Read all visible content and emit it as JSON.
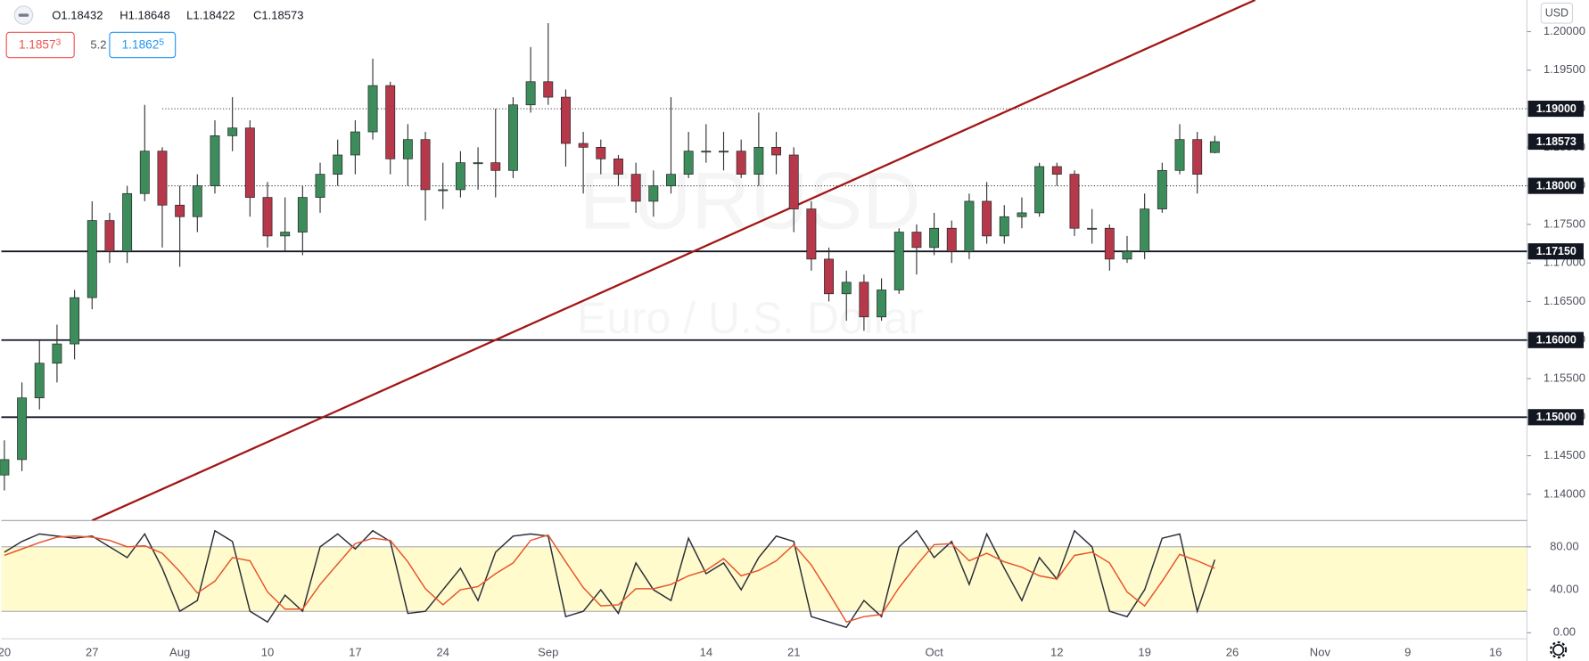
{
  "chart_data": {
    "type": "candlestick",
    "watermark": {
      "symbol": "EURUSD",
      "description": "Euro / U.S. Dollar"
    },
    "legend": {
      "open": "O1.18432",
      "high": "H1.18648",
      "low": "L1.18422",
      "close": "C1.18573"
    },
    "bid": "1.18573",
    "spread": "5.2",
    "ask": "1.18625",
    "currency": "USD",
    "up_color": "#3d8c5c",
    "down_color": "#b5394a",
    "wick_color": "#333333",
    "open": [
      1.1425,
      1.1445,
      1.1525,
      1.157,
      1.1595,
      1.1655,
      1.1755,
      1.1715,
      1.179,
      1.1845,
      1.1775,
      1.176,
      1.18,
      1.1865,
      1.1875,
      1.1785,
      1.1735,
      1.174,
      1.1785,
      1.1815,
      1.184,
      1.187,
      1.193,
      1.1835,
      1.186,
      1.1795,
      1.1795,
      1.183,
      1.183,
      1.182,
      1.1905,
      1.1935,
      1.1915,
      1.1855,
      1.185,
      1.1835,
      1.1815,
      1.178,
      1.18,
      1.1815,
      1.1845,
      1.1845,
      1.1845,
      1.1815,
      1.185,
      1.184,
      1.177,
      1.1705,
      1.166,
      1.1675,
      1.163,
      1.1665,
      1.174,
      1.172,
      1.1745,
      1.1715,
      1.178,
      1.1735,
      1.176,
      1.1765,
      1.1825,
      1.1815,
      1.1745,
      1.1745,
      1.1705,
      1.1715,
      1.177,
      1.182,
      1.186,
      1.18432
    ],
    "high": [
      1.147,
      1.1545,
      1.16,
      1.162,
      1.1665,
      1.178,
      1.1765,
      1.18,
      1.1905,
      1.185,
      1.18,
      1.1815,
      1.1885,
      1.1915,
      1.1885,
      1.1805,
      1.1785,
      1.18,
      1.183,
      1.186,
      1.1885,
      1.1965,
      1.1935,
      1.188,
      1.187,
      1.183,
      1.1845,
      1.185,
      1.19,
      1.1915,
      1.198,
      1.2011,
      1.1925,
      1.187,
      1.186,
      1.184,
      1.183,
      1.182,
      1.1915,
      1.187,
      1.188,
      1.187,
      1.186,
      1.1895,
      1.187,
      1.185,
      1.178,
      1.172,
      1.169,
      1.1685,
      1.168,
      1.1745,
      1.175,
      1.1765,
      1.1755,
      1.179,
      1.1805,
      1.1775,
      1.1785,
      1.183,
      1.183,
      1.182,
      1.177,
      1.175,
      1.1735,
      1.179,
      1.183,
      1.188,
      1.187,
      1.18648
    ],
    "low": [
      1.1405,
      1.143,
      1.151,
      1.1545,
      1.1575,
      1.164,
      1.17,
      1.17,
      1.178,
      1.172,
      1.1695,
      1.174,
      1.179,
      1.1845,
      1.176,
      1.172,
      1.1715,
      1.171,
      1.1765,
      1.18,
      1.1815,
      1.186,
      1.1815,
      1.18,
      1.1755,
      1.177,
      1.1785,
      1.1795,
      1.1785,
      1.181,
      1.1895,
      1.1905,
      1.1825,
      1.179,
      1.1815,
      1.18,
      1.1765,
      1.176,
      1.179,
      1.181,
      1.183,
      1.182,
      1.181,
      1.18,
      1.1815,
      1.174,
      1.169,
      1.165,
      1.1625,
      1.1612,
      1.1625,
      1.166,
      1.1685,
      1.171,
      1.17,
      1.1705,
      1.1725,
      1.1725,
      1.1745,
      1.176,
      1.18,
      1.1735,
      1.1725,
      1.169,
      1.17,
      1.1705,
      1.1765,
      1.1815,
      1.179,
      1.18422
    ],
    "close": [
      1.1445,
      1.1525,
      1.157,
      1.1595,
      1.1655,
      1.1755,
      1.1715,
      1.179,
      1.1845,
      1.1775,
      1.176,
      1.18,
      1.1865,
      1.1875,
      1.1785,
      1.1735,
      1.174,
      1.1785,
      1.1815,
      1.184,
      1.187,
      1.193,
      1.1835,
      1.186,
      1.1795,
      1.1795,
      1.183,
      1.183,
      1.182,
      1.1905,
      1.1935,
      1.1915,
      1.1855,
      1.185,
      1.1835,
      1.1815,
      1.178,
      1.18,
      1.1815,
      1.1845,
      1.1845,
      1.1845,
      1.1815,
      1.185,
      1.184,
      1.177,
      1.1705,
      1.166,
      1.1675,
      1.163,
      1.1665,
      1.174,
      1.172,
      1.1745,
      1.1715,
      1.178,
      1.1735,
      1.176,
      1.1765,
      1.1825,
      1.1815,
      1.1745,
      1.1745,
      1.1705,
      1.1715,
      1.177,
      1.182,
      1.186,
      1.1815,
      1.18573
    ],
    "xticks": [
      {
        "value": 0,
        "label": "20"
      },
      {
        "value": 5,
        "label": "27"
      },
      {
        "value": 10,
        "label": "Aug"
      },
      {
        "value": 15,
        "label": "10"
      },
      {
        "value": 20,
        "label": "17"
      },
      {
        "value": 25,
        "label": "24"
      },
      {
        "value": 31,
        "label": "Sep"
      },
      {
        "value": 40,
        "label": "14"
      },
      {
        "value": 45,
        "label": "21"
      },
      {
        "value": 53,
        "label": "Oct"
      },
      {
        "value": 60,
        "label": "12"
      },
      {
        "value": 65,
        "label": "19"
      },
      {
        "value": 70,
        "label": "26"
      },
      {
        "value": 75,
        "label": "Nov"
      },
      {
        "value": 80,
        "label": "9"
      },
      {
        "value": 85,
        "label": "16"
      }
    ],
    "ylim": [
      1.1366,
      1.2041
    ],
    "yticks": [
      {
        "value": 1.14,
        "label": "1.14000"
      },
      {
        "value": 1.145,
        "label": "1.14500"
      },
      {
        "value": 1.15,
        "label": "1.15000"
      },
      {
        "value": 1.155,
        "label": "1.15500"
      },
      {
        "value": 1.16,
        "label": "1.16000"
      },
      {
        "value": 1.165,
        "label": "1.16500"
      },
      {
        "value": 1.17,
        "label": "1.17000"
      },
      {
        "value": 1.175,
        "label": "1.17500"
      },
      {
        "value": 1.18,
        "label": "1.18000"
      },
      {
        "value": 1.185,
        "label": "1.18500"
      },
      {
        "value": 1.19,
        "label": "1.19000"
      },
      {
        "value": 1.195,
        "label": "1.19500"
      },
      {
        "value": 1.2,
        "label": "1.20000"
      }
    ],
    "horizontal_lines": [
      {
        "value": 1.19,
        "style": "dotted",
        "from_index": 9
      },
      {
        "value": 1.18,
        "style": "dotted",
        "from_index": 9
      },
      {
        "value": 1.1715,
        "style": "solid"
      },
      {
        "value": 1.16,
        "style": "solid"
      },
      {
        "value": 1.15,
        "style": "solid"
      }
    ],
    "price_markers": [
      {
        "value": 1.19,
        "label": "1.19000"
      },
      {
        "value": 1.18573,
        "label": "1.18573"
      },
      {
        "value": 1.18,
        "label": "1.18000"
      },
      {
        "value": 1.1715,
        "label": "1.17150"
      },
      {
        "value": 1.16,
        "label": "1.16000"
      },
      {
        "value": 1.15,
        "label": "1.15000"
      }
    ],
    "trendline": {
      "color": "#a31515",
      "x": [
        5,
        71.3
      ],
      "y": [
        1.1366,
        1.2041
      ]
    },
    "oscillator": {
      "ylim": [
        -5.6,
        104.5
      ],
      "yticks": [
        {
          "value": 0,
          "label": "0.00"
        },
        {
          "value": 40,
          "label": "40.00"
        },
        {
          "value": 80,
          "label": "80.00"
        }
      ],
      "band": [
        20,
        80
      ],
      "band_color": "#fffbcc",
      "series": [
        {
          "color": "#2a2e39",
          "values": [
            75,
            85,
            92,
            90,
            88,
            90,
            80,
            70,
            92,
            60,
            20,
            30,
            95,
            85,
            20,
            10,
            35,
            20,
            80,
            92,
            78,
            95,
            85,
            18,
            20,
            40,
            60,
            30,
            75,
            90,
            92,
            90,
            15,
            20,
            40,
            18,
            65,
            40,
            30,
            88,
            55,
            65,
            40,
            70,
            90,
            85,
            15,
            10,
            5,
            30,
            15,
            80,
            95,
            70,
            85,
            45,
            92,
            60,
            30,
            70,
            50,
            95,
            80,
            20,
            15,
            40,
            88,
            92,
            20,
            68
          ]
        },
        {
          "color": "#e8542c",
          "values": [
            72,
            78,
            84,
            89,
            90,
            89,
            86,
            80,
            81,
            74,
            57,
            37,
            48,
            70,
            67,
            38,
            22,
            22,
            45,
            64,
            83,
            88,
            86,
            66,
            41,
            26,
            40,
            43,
            55,
            65,
            86,
            91,
            66,
            42,
            25,
            26,
            41,
            41,
            45,
            53,
            58,
            69,
            53,
            58,
            67,
            82,
            63,
            37,
            10,
            15,
            17,
            42,
            63,
            82,
            83,
            67,
            74,
            66,
            61,
            53,
            50,
            72,
            75,
            65,
            38,
            25,
            48,
            73,
            67,
            60
          ]
        }
      ]
    }
  }
}
